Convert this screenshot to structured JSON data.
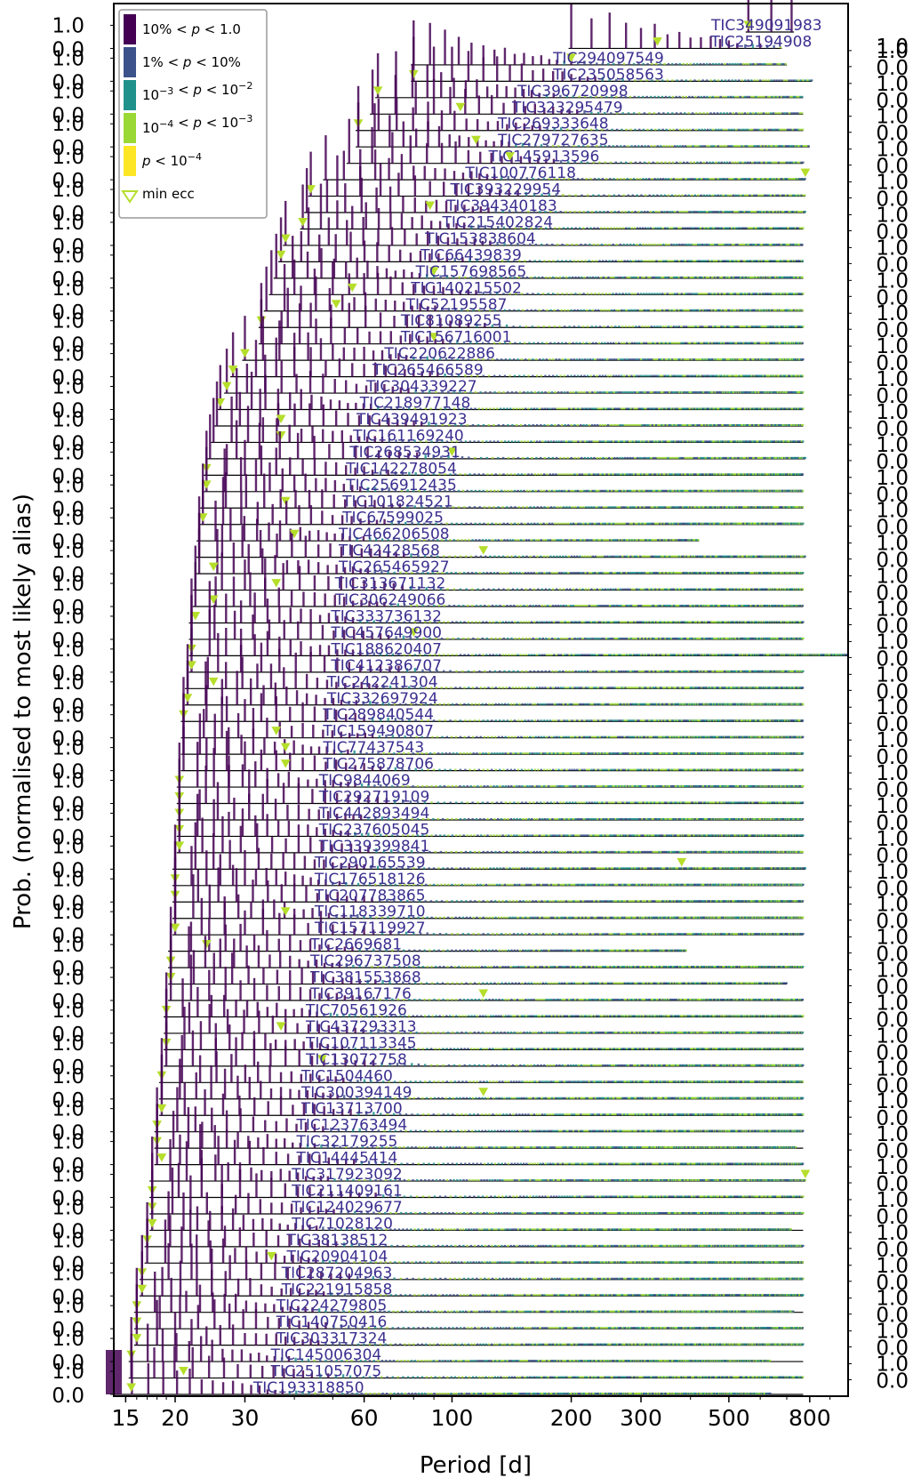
{
  "chart_data": {
    "type": "bar",
    "xlabel": "Period [d]",
    "ylabel": "Prob. (normalised to most likely alias)",
    "x_scale": "log",
    "xlim": [
      14,
      1000
    ],
    "x_ticks": [
      {
        "value": 15,
        "label": "15"
      },
      {
        "value": 20,
        "label": "20"
      },
      {
        "value": 30,
        "label": "30"
      },
      {
        "value": 60,
        "label": "60"
      },
      {
        "value": 100,
        "label": "100"
      },
      {
        "value": 200,
        "label": "200"
      },
      {
        "value": 300,
        "label": "300"
      },
      {
        "value": 500,
        "label": "500"
      },
      {
        "value": 800,
        "label": "800"
      }
    ],
    "y_tick_top": "1.0",
    "y_tick_bottom": "0.0",
    "legend": {
      "placement": "top-left",
      "entries": [
        {
          "label_parts": [
            "10% < ",
            "p",
            " < 1.0"
          ],
          "color": "#440154",
          "kind": "patch"
        },
        {
          "label_parts": [
            "1% < ",
            "p",
            " < 10%"
          ],
          "color": "#3b528b",
          "kind": "patch"
        },
        {
          "label_parts": [
            "10",
            "−3",
            " < ",
            "p",
            " < 10",
            "−2"
          ],
          "color": "#21918c",
          "kind": "patch"
        },
        {
          "label_parts": [
            "10",
            "−4",
            " < ",
            "p",
            " < 10",
            "−3"
          ],
          "color": "#9ad836",
          "kind": "patch"
        },
        {
          "label_parts": [
            "p",
            " < 10",
            "−4"
          ],
          "color": "#fde725",
          "kind": "patch"
        },
        {
          "label_parts": [
            "min ecc"
          ],
          "color": "#b5de2b",
          "kind": "marker"
        }
      ]
    },
    "colors": {
      "c1": "#440154",
      "c2": "#3b528b",
      "c3": "#21918c",
      "c4": "#9ad836",
      "c5": "#fde725",
      "marker": "#b5de2b",
      "label": "#3b2f8f"
    },
    "systems": [
      {
        "tic": "TIC349091983",
        "pmin": 560,
        "pmax": 730,
        "minecc": 560
      },
      {
        "tic": "TIC25194908",
        "pmin": 200,
        "pmax": 680,
        "minecc": 330
      },
      {
        "tic": "TIC294097549",
        "pmin": 80,
        "pmax": 700,
        "minecc": 200
      },
      {
        "tic": "TIC235058563",
        "pmin": 80,
        "pmax": 810,
        "minecc": 80
      },
      {
        "tic": "TIC396720998",
        "pmin": 65,
        "pmax": 770,
        "minecc": 65
      },
      {
        "tic": "TIC323295479",
        "pmin": 63,
        "pmax": 770,
        "minecc": 105
      },
      {
        "tic": "TIC269333648",
        "pmin": 58,
        "pmax": 770,
        "minecc": 58
      },
      {
        "tic": "TIC279727635",
        "pmin": 58,
        "pmax": 800,
        "minecc": 115
      },
      {
        "tic": "TIC145913596",
        "pmin": 55,
        "pmax": 770,
        "minecc": 140
      },
      {
        "tic": "TIC100776118",
        "pmin": 48,
        "pmax": 780,
        "minecc": 780
      },
      {
        "tic": "TIC393229954",
        "pmin": 44,
        "pmax": 780,
        "minecc": 44
      },
      {
        "tic": "TIC394340183",
        "pmin": 43,
        "pmax": 780,
        "minecc": 88
      },
      {
        "tic": "TIC215402824",
        "pmin": 42,
        "pmax": 770,
        "minecc": 42
      },
      {
        "tic": "TIC153838604",
        "pmin": 38,
        "pmax": 770,
        "minecc": 38
      },
      {
        "tic": "TIC66439839",
        "pmin": 37,
        "pmax": 770,
        "minecc": 37
      },
      {
        "tic": "TIC157698565",
        "pmin": 36,
        "pmax": 770,
        "minecc": 90
      },
      {
        "tic": "TIC140215502",
        "pmin": 35,
        "pmax": 770,
        "minecc": 56
      },
      {
        "tic": "TIC52195587",
        "pmin": 34,
        "pmax": 770,
        "minecc": 51
      },
      {
        "tic": "TIC81089255",
        "pmin": 33,
        "pmax": 770,
        "minecc": 33
      },
      {
        "tic": "TIC156716001",
        "pmin": 33,
        "pmax": 770,
        "minecc": 90
      },
      {
        "tic": "TIC220622886",
        "pmin": 30,
        "pmax": 770,
        "minecc": 30
      },
      {
        "tic": "TIC265466589",
        "pmin": 28,
        "pmax": 770,
        "minecc": 28
      },
      {
        "tic": "TIC304339227",
        "pmin": 27,
        "pmax": 770,
        "minecc": 27
      },
      {
        "tic": "TIC218977148",
        "pmin": 26,
        "pmax": 770,
        "minecc": 26
      },
      {
        "tic": "TIC439491923",
        "pmin": 25.5,
        "pmax": 770,
        "minecc": 37
      },
      {
        "tic": "TIC161169240",
        "pmin": 25,
        "pmax": 770,
        "minecc": 37
      },
      {
        "tic": "TIC268534931",
        "pmin": 24.5,
        "pmax": 780,
        "minecc": 100
      },
      {
        "tic": "TIC142278054",
        "pmin": 24,
        "pmax": 770,
        "minecc": 24
      },
      {
        "tic": "TIC256912435",
        "pmin": 24,
        "pmax": 770,
        "minecc": 24
      },
      {
        "tic": "TIC101824521",
        "pmin": 23.5,
        "pmax": 770,
        "minecc": 38
      },
      {
        "tic": "TIC67599025",
        "pmin": 23.5,
        "pmax": 770,
        "minecc": 23.5
      },
      {
        "tic": "TIC466206508",
        "pmin": 23,
        "pmax": 420,
        "minecc": 40
      },
      {
        "tic": "TIC42428568",
        "pmin": 23,
        "pmax": 780,
        "minecc": 120
      },
      {
        "tic": "TIC265465927",
        "pmin": 23,
        "pmax": 770,
        "minecc": 25
      },
      {
        "tic": "TIC313671132",
        "pmin": 22.5,
        "pmax": 770,
        "minecc": 36
      },
      {
        "tic": "TIC306249066",
        "pmin": 22.5,
        "pmax": 770,
        "minecc": 25
      },
      {
        "tic": "TIC333736132",
        "pmin": 22,
        "pmax": 770,
        "minecc": 22.5
      },
      {
        "tic": "TIC457649900",
        "pmin": 22,
        "pmax": 770,
        "minecc": 80
      },
      {
        "tic": "TIC188620407",
        "pmin": 22,
        "pmax": 1000,
        "minecc": 22
      },
      {
        "tic": "TIC412386707",
        "pmin": 22,
        "pmax": 770,
        "minecc": 22
      },
      {
        "tic": "TIC242241304",
        "pmin": 21.5,
        "pmax": 770,
        "minecc": 25
      },
      {
        "tic": "TIC332697924",
        "pmin": 21.5,
        "pmax": 770,
        "minecc": 21.5
      },
      {
        "tic": "TIC289840544",
        "pmin": 21,
        "pmax": 770,
        "minecc": 21
      },
      {
        "tic": "TIC159490807",
        "pmin": 21,
        "pmax": 770,
        "minecc": 36
      },
      {
        "tic": "TIC77437543",
        "pmin": 21,
        "pmax": 770,
        "minecc": 38
      },
      {
        "tic": "TIC275878706",
        "pmin": 21,
        "pmax": 770,
        "minecc": 38
      },
      {
        "tic": "TIC9844069",
        "pmin": 20.5,
        "pmax": 770,
        "minecc": 20.5
      },
      {
        "tic": "TIC292719109",
        "pmin": 20.5,
        "pmax": 770,
        "minecc": 20.5
      },
      {
        "tic": "TIC442893494",
        "pmin": 20.5,
        "pmax": 770,
        "minecc": 20.5
      },
      {
        "tic": "TIC237605045",
        "pmin": 20.5,
        "pmax": 770,
        "minecc": 20.5
      },
      {
        "tic": "TIC339399841",
        "pmin": 20.5,
        "pmax": 770,
        "minecc": 20.5
      },
      {
        "tic": "TIC290165539",
        "pmin": 20,
        "pmax": 780,
        "minecc": 380
      },
      {
        "tic": "TIC176518126",
        "pmin": 20,
        "pmax": 770,
        "minecc": 20
      },
      {
        "tic": "TIC207783865",
        "pmin": 20,
        "pmax": 770,
        "minecc": 20
      },
      {
        "tic": "TIC118339710",
        "pmin": 20,
        "pmax": 770,
        "minecc": 38
      },
      {
        "tic": "TIC157119927",
        "pmin": 20,
        "pmax": 770,
        "minecc": 20
      },
      {
        "tic": "TIC2669681",
        "pmin": 19.5,
        "pmax": 390,
        "minecc": 24
      },
      {
        "tic": "TIC296737508",
        "pmin": 19.5,
        "pmax": 770,
        "minecc": 19.5
      },
      {
        "tic": "TIC381553868",
        "pmin": 19.5,
        "pmax": 700,
        "minecc": 19.5
      },
      {
        "tic": "TIC39167176",
        "pmin": 19.5,
        "pmax": 770,
        "minecc": 120
      },
      {
        "tic": "TIC70561926",
        "pmin": 19,
        "pmax": 770,
        "minecc": 19
      },
      {
        "tic": "TIC437293313",
        "pmin": 19,
        "pmax": 770,
        "minecc": 37
      },
      {
        "tic": "TIC107113345",
        "pmin": 19,
        "pmax": 770,
        "minecc": 19
      },
      {
        "tic": "TIC13072758",
        "pmin": 19,
        "pmax": 770,
        "minecc": 47
      },
      {
        "tic": "TIC1504460",
        "pmin": 18.5,
        "pmax": 770,
        "minecc": 18.5
      },
      {
        "tic": "TIC300394149",
        "pmin": 18.5,
        "pmax": 770,
        "minecc": 120
      },
      {
        "tic": "TIC13713700",
        "pmin": 18.5,
        "pmax": 770,
        "minecc": 18.5
      },
      {
        "tic": "TIC123763494",
        "pmin": 18,
        "pmax": 770,
        "minecc": 18
      },
      {
        "tic": "TIC32179255",
        "pmin": 18,
        "pmax": 770,
        "minecc": 18
      },
      {
        "tic": "TIC14445414",
        "pmin": 18,
        "pmax": 770,
        "minecc": 18.5
      },
      {
        "tic": "TIC317923092",
        "pmin": 17.5,
        "pmax": 780,
        "minecc": 780
      },
      {
        "tic": "TIC211409161",
        "pmin": 17.5,
        "pmax": 770,
        "minecc": 17.5
      },
      {
        "tic": "TIC124029677",
        "pmin": 17.5,
        "pmax": 770,
        "minecc": 17.5
      },
      {
        "tic": "TIC71028120",
        "pmin": 17.5,
        "pmax": 770,
        "minecc": 17.5
      },
      {
        "tic": "TIC38138512",
        "pmin": 17,
        "pmax": 770,
        "minecc": 17
      },
      {
        "tic": "TIC20904104",
        "pmin": 17,
        "pmax": 770,
        "minecc": 35
      },
      {
        "tic": "TIC287204963",
        "pmin": 16.5,
        "pmax": 770,
        "minecc": 16.5
      },
      {
        "tic": "TIC221915858",
        "pmin": 16.5,
        "pmax": 770,
        "minecc": 16.5
      },
      {
        "tic": "TIC224279805",
        "pmin": 16,
        "pmax": 770,
        "minecc": 16
      },
      {
        "tic": "TIC140750416",
        "pmin": 16,
        "pmax": 770,
        "minecc": 16
      },
      {
        "tic": "TIC303317324",
        "pmin": 16,
        "pmax": 770,
        "minecc": 16
      },
      {
        "tic": "TIC145006304",
        "pmin": 15.5,
        "pmax": 770,
        "minecc": 15.5
      },
      {
        "tic": "TIC251057075",
        "pmin": 15.5,
        "pmax": 770,
        "minecc": 21
      },
      {
        "tic": "TIC193318850",
        "pmin": 14,
        "pmax": 770,
        "minecc": 15.5
      }
    ]
  }
}
